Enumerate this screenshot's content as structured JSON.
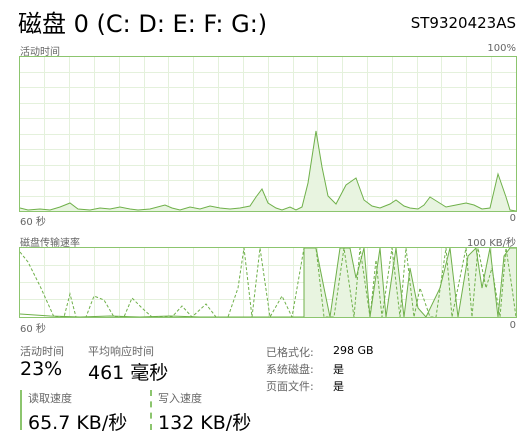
{
  "header": {
    "title": "磁盘 0 (C: D: E: F: G:)",
    "model": "ST9320423AS"
  },
  "graph_active": {
    "label": "活动时间",
    "max_label": "100%",
    "left_time": "60 秒",
    "right_value": "0"
  },
  "graph_transfer": {
    "label": "磁盘传输速率",
    "max_label": "100 KB/秒",
    "left_time": "60 秒",
    "right_value": "0"
  },
  "stats": {
    "active_time": {
      "label": "活动时间",
      "value": "23%"
    },
    "avg_response": {
      "label": "平均响应时间",
      "value": "461 毫秒"
    },
    "read_speed": {
      "label": "读取速度",
      "value": "65.7 KB/秒"
    },
    "write_speed": {
      "label": "写入速度",
      "value": "132 KB/秒"
    }
  },
  "info": {
    "formatted": {
      "label": "已格式化:",
      "value": "298 GB"
    },
    "system_disk": {
      "label": "系统磁盘:",
      "value": "是"
    },
    "page_file": {
      "label": "页面文件:",
      "value": "是"
    }
  },
  "colors": {
    "accent": "#8cc56e",
    "grid": "#e4f1dc"
  }
}
